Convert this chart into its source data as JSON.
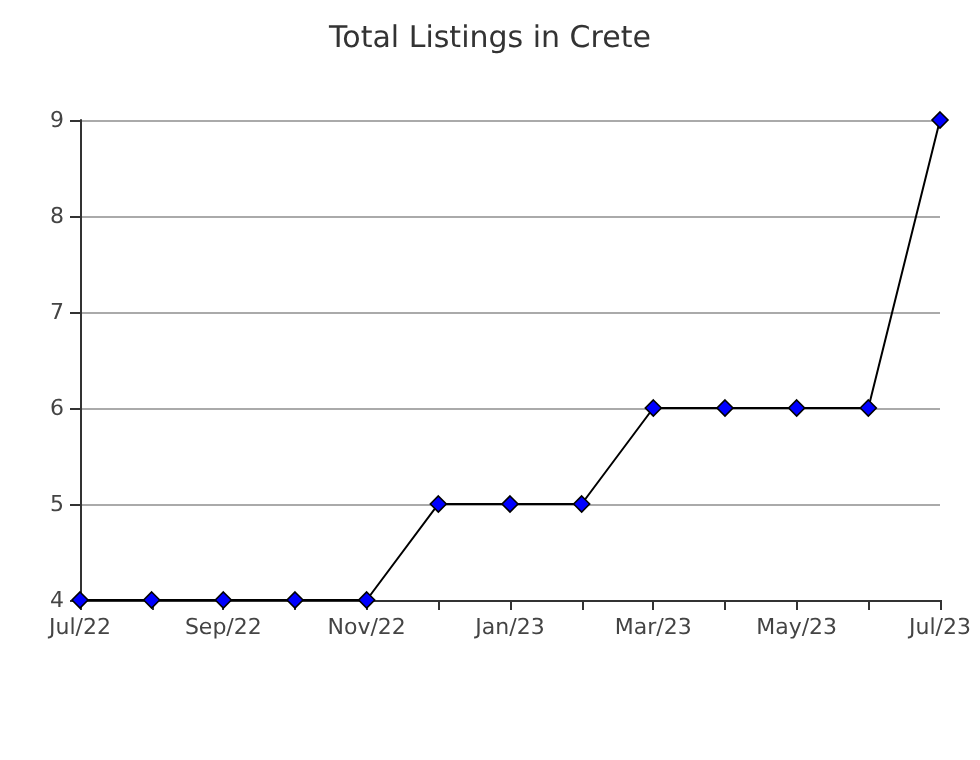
{
  "chart_data": {
    "type": "line",
    "title": "Total Listings in Crete",
    "categories": [
      "Jul/22",
      null,
      "Sep/22",
      null,
      "Nov/22",
      null,
      "Jan/23",
      null,
      "Mar/23",
      null,
      "May/23",
      null,
      "Jul/23"
    ],
    "series": [
      {
        "color": "#0000ff",
        "values": [
          4,
          4,
          4,
          4,
          4,
          5,
          5,
          5,
          6,
          6,
          6,
          6,
          9
        ]
      }
    ],
    "ylim": [
      4,
      9
    ],
    "yticks": [
      4,
      5,
      6,
      7,
      8,
      9
    ],
    "grid": "y",
    "marker": "diamond",
    "line_style": "solid"
  }
}
